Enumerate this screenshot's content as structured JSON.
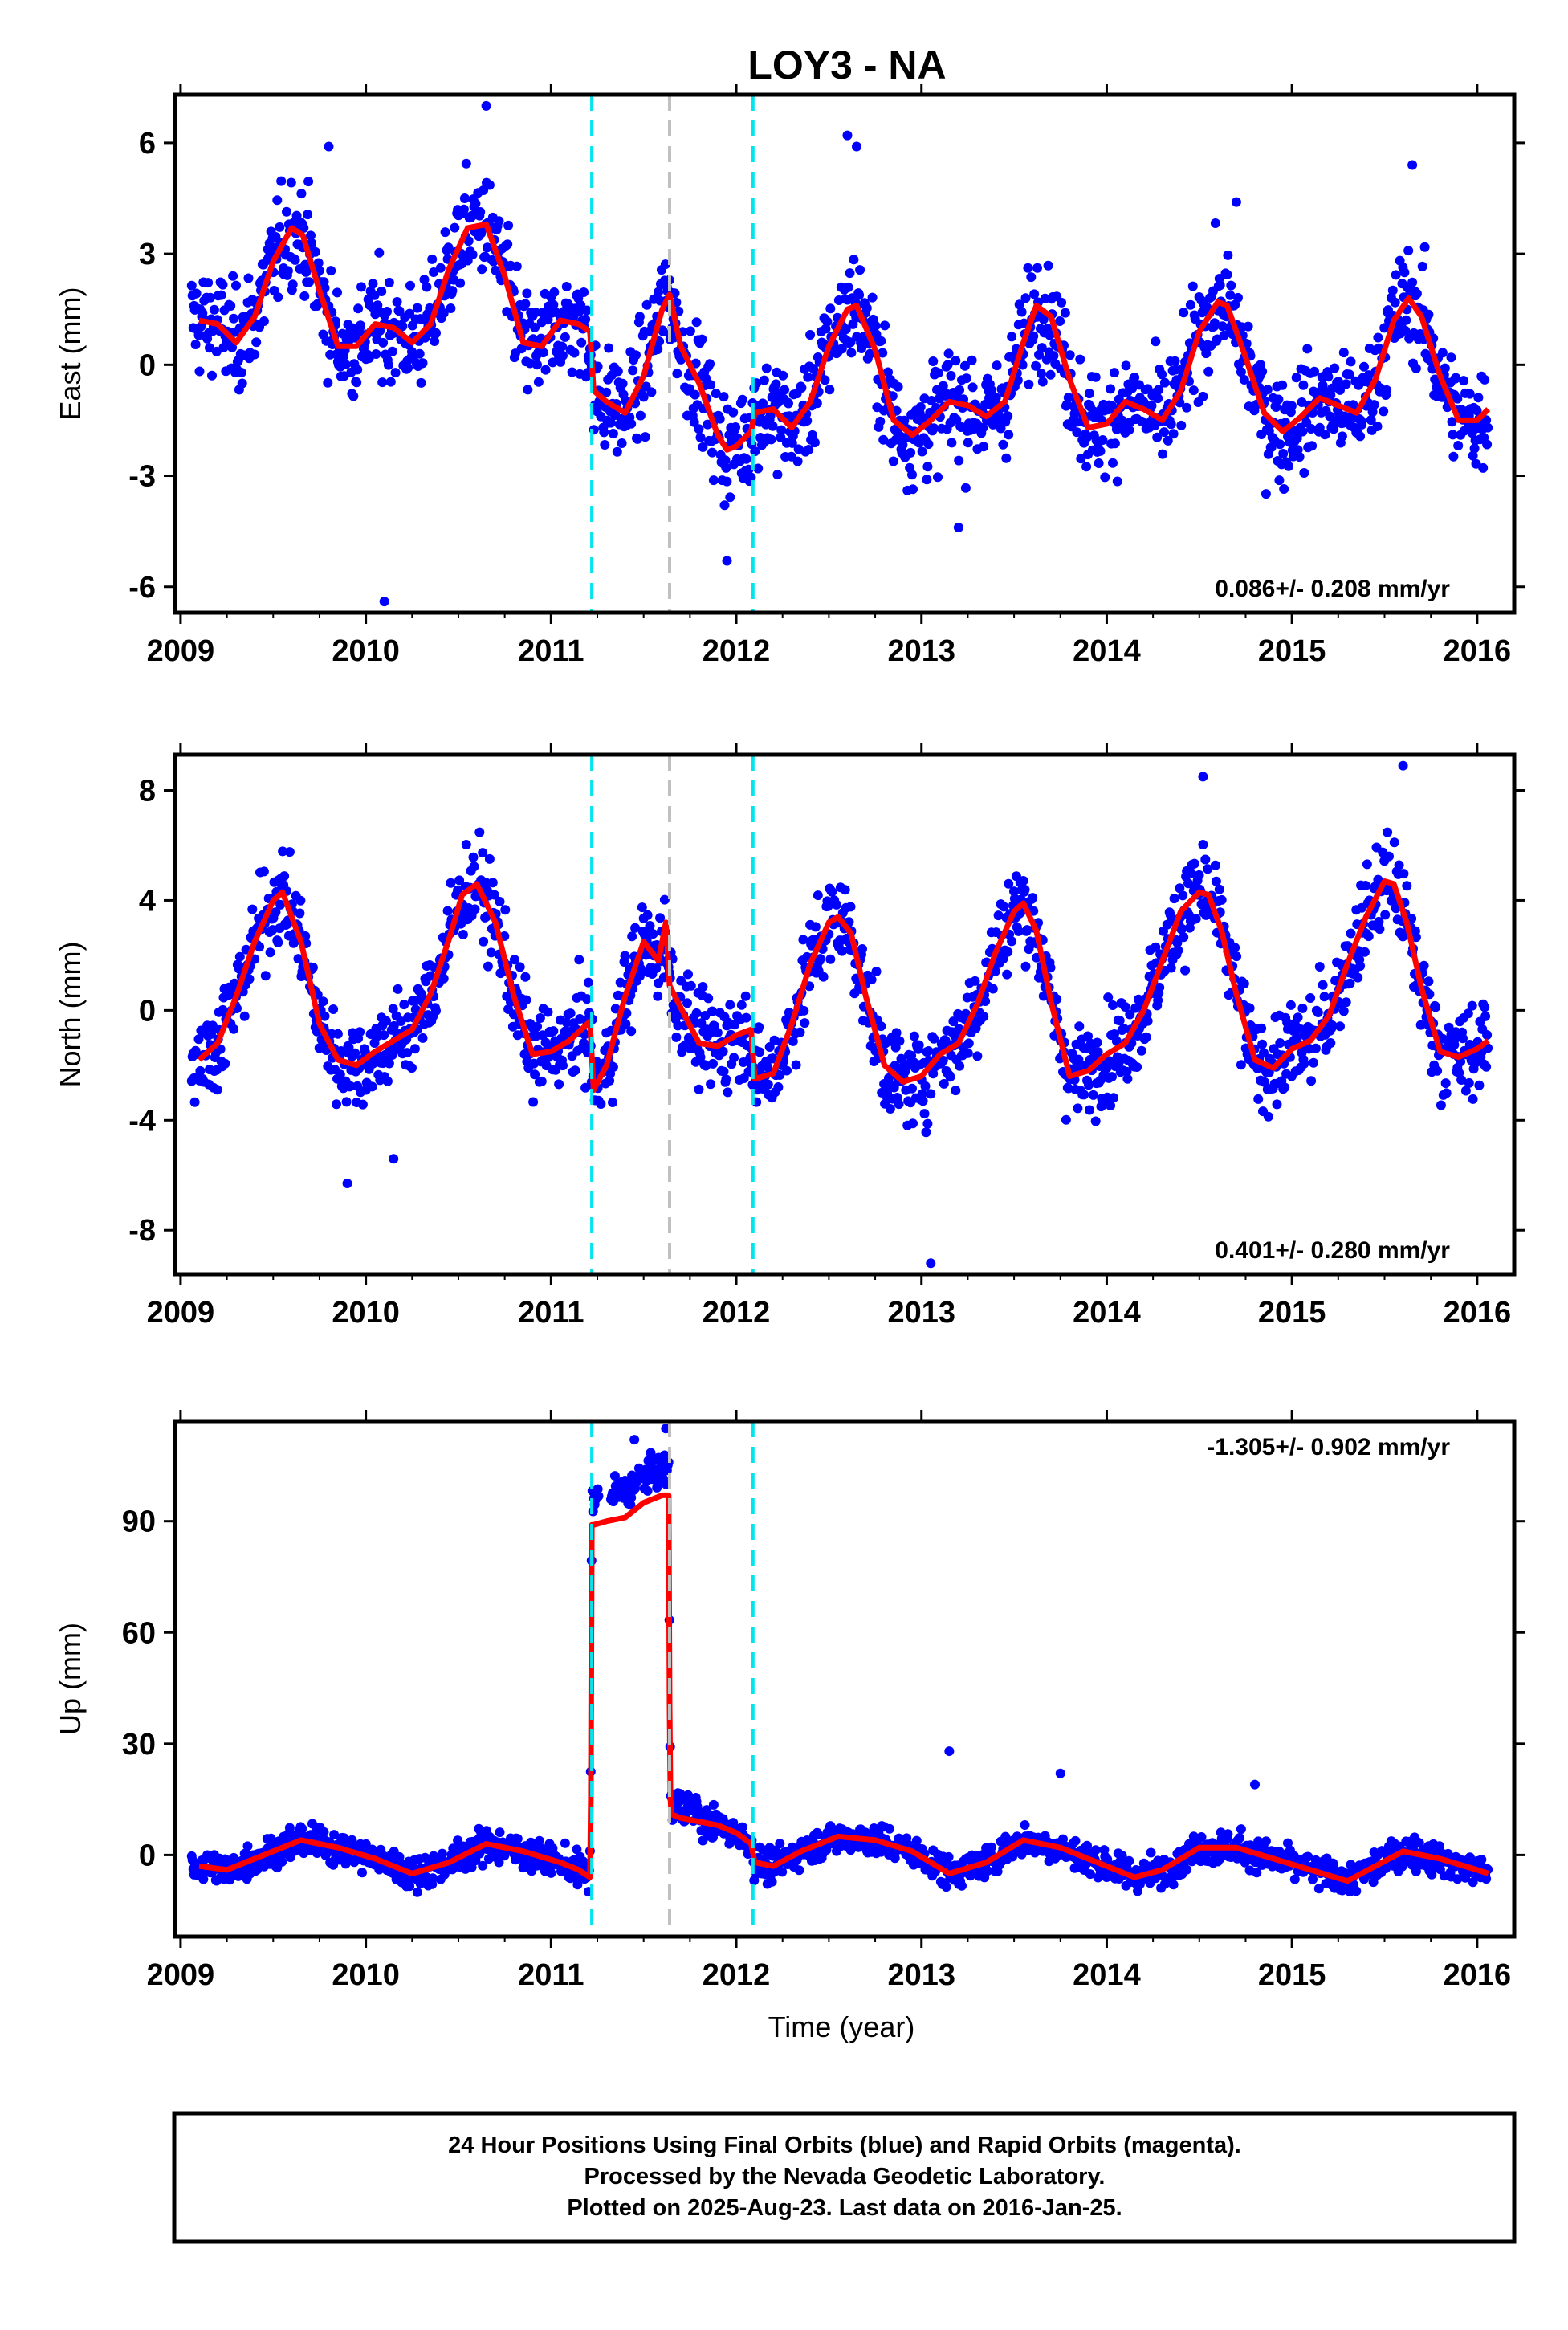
{
  "title": "LOY3 - NA",
  "xlabel": "Time (year)",
  "footer": {
    "line1": "24 Hour Positions Using Final Orbits (blue) and Rapid Orbits (magenta).",
    "line2": "Processed by the Nevada Geodetic Laboratory.",
    "line3": "Plotted on 2025-Aug-23. Last data on 2016-Jan-25."
  },
  "colors": {
    "points": "#0000ff",
    "model": "#ff0000",
    "offset_lines": "#00e5ee",
    "gap_line": "#c0c0c0"
  },
  "chart_data": [
    {
      "type": "scatter",
      "ylabel": "East (mm)",
      "rate": "0.086+/- 0.208 mm/yr",
      "rate_position": "bottom-right",
      "xlim": [
        2008.97,
        2016.2
      ],
      "ylim": [
        -6.7,
        7.3
      ],
      "xticks": [
        "2009",
        "2010",
        "2011",
        "2012",
        "2013",
        "2014",
        "2015",
        "2016"
      ],
      "yticks": [
        "-6",
        "-3",
        "0",
        "3",
        "6"
      ],
      "ytick_values": [
        -6,
        -3,
        0,
        3,
        6
      ],
      "offset_lines": [
        2011.22,
        2012.09
      ],
      "gap_line": 2011.64,
      "model": {
        "x": [
          2009.1,
          2009.2,
          2009.3,
          2009.4,
          2009.5,
          2009.6,
          2009.66,
          2009.75,
          2009.85,
          2009.95,
          2010.05,
          2010.15,
          2010.25,
          2010.35,
          2010.45,
          2010.55,
          2010.65,
          2010.75,
          2010.85,
          2010.95,
          2011.05,
          2011.15,
          2011.21,
          2011.23,
          2011.3,
          2011.4,
          2011.5,
          2011.6,
          2011.64,
          2011.7,
          2011.8,
          2011.9,
          2011.95,
          2012.0,
          2012.08,
          2012.1,
          2012.2,
          2012.3,
          2012.4,
          2012.5,
          2012.6,
          2012.65,
          2012.75,
          2012.85,
          2012.95,
          2013.05,
          2013.15,
          2013.25,
          2013.35,
          2013.45,
          2013.55,
          2013.62,
          2013.7,
          2013.8,
          2013.9,
          2014.0,
          2014.1,
          2014.2,
          2014.3,
          2014.4,
          2014.5,
          2014.6,
          2014.65,
          2014.75,
          2014.85,
          2014.95,
          2015.05,
          2015.15,
          2015.25,
          2015.35,
          2015.45,
          2015.55,
          2015.63,
          2015.7,
          2015.8,
          2015.9,
          2016.0,
          2016.06
        ],
        "y": [
          1.2,
          1.1,
          0.6,
          1.3,
          2.8,
          3.7,
          3.5,
          2.0,
          0.5,
          0.5,
          1.1,
          1.0,
          0.6,
          1.1,
          2.6,
          3.7,
          3.8,
          2.4,
          0.6,
          0.5,
          1.2,
          1.1,
          0.9,
          -0.7,
          -1.0,
          -1.3,
          -0.3,
          1.5,
          1.9,
          0.5,
          -0.5,
          -1.9,
          -2.3,
          -2.2,
          -1.8,
          -1.3,
          -1.2,
          -1.7,
          -1.0,
          0.5,
          1.5,
          1.6,
          0.4,
          -1.5,
          -1.9,
          -1.5,
          -1.0,
          -1.1,
          -1.4,
          -1.0,
          0.6,
          1.6,
          1.3,
          -0.4,
          -1.7,
          -1.6,
          -1.0,
          -1.2,
          -1.5,
          -0.7,
          0.9,
          1.7,
          1.6,
          0.2,
          -1.3,
          -1.8,
          -1.4,
          -0.9,
          -1.1,
          -1.3,
          -0.4,
          1.2,
          1.8,
          1.3,
          -0.3,
          -1.5,
          -1.5,
          -1.2
        ]
      },
      "outliers": [
        {
          "x": 2010.1,
          "y": -6.4
        },
        {
          "x": 2010.65,
          "y": 7.0
        },
        {
          "x": 2012.6,
          "y": 6.2
        },
        {
          "x": 2012.65,
          "y": 5.9
        },
        {
          "x": 2011.95,
          "y": -5.3
        },
        {
          "x": 2015.65,
          "y": 5.4
        },
        {
          "x": 2009.8,
          "y": 5.9
        },
        {
          "x": 2013.2,
          "y": -4.4
        },
        {
          "x": 2014.7,
          "y": 4.4
        }
      ]
    },
    {
      "type": "scatter",
      "ylabel": "North (mm)",
      "rate": "0.401+/- 0.280 mm/yr",
      "rate_position": "bottom-right",
      "xlim": [
        2008.97,
        2016.2
      ],
      "ylim": [
        -9.6,
        9.3
      ],
      "xticks": [
        "2009",
        "2010",
        "2011",
        "2012",
        "2013",
        "2014",
        "2015",
        "2016"
      ],
      "yticks": [
        "-8",
        "-4",
        "0",
        "4",
        "8"
      ],
      "ytick_values": [
        -8,
        -4,
        0,
        4,
        8
      ],
      "offset_lines": [
        2011.22,
        2012.09
      ],
      "gap_line": 2011.64,
      "model": {
        "x": [
          2009.1,
          2009.2,
          2009.3,
          2009.4,
          2009.5,
          2009.55,
          2009.65,
          2009.75,
          2009.85,
          2009.95,
          2010.05,
          2010.15,
          2010.25,
          2010.35,
          2010.45,
          2010.52,
          2010.6,
          2010.7,
          2010.8,
          2010.9,
          2011.0,
          2011.1,
          2011.21,
          2011.23,
          2011.3,
          2011.4,
          2011.5,
          2011.58,
          2011.62,
          2011.64,
          2011.7,
          2011.8,
          2011.9,
          2012.0,
          2012.08,
          2012.1,
          2012.2,
          2012.3,
          2012.4,
          2012.5,
          2012.55,
          2012.62,
          2012.7,
          2012.8,
          2012.9,
          2013.0,
          2013.1,
          2013.2,
          2013.3,
          2013.4,
          2013.5,
          2013.55,
          2013.62,
          2013.7,
          2013.8,
          2013.9,
          2014.0,
          2014.1,
          2014.2,
          2014.3,
          2014.4,
          2014.5,
          2014.55,
          2014.62,
          2014.7,
          2014.8,
          2014.9,
          2015.0,
          2015.1,
          2015.2,
          2015.3,
          2015.4,
          2015.5,
          2015.55,
          2015.62,
          2015.7,
          2015.8,
          2015.9,
          2016.0,
          2016.06
        ],
        "y": [
          -1.8,
          -1.2,
          0.5,
          2.5,
          4.0,
          4.3,
          2.5,
          -0.5,
          -1.8,
          -2.0,
          -1.5,
          -1.1,
          -0.7,
          0.6,
          2.6,
          4.2,
          4.6,
          3.2,
          0.5,
          -1.6,
          -1.5,
          -1.1,
          -0.4,
          -2.9,
          -2.0,
          0.5,
          2.5,
          1.8,
          3.2,
          0.9,
          0.1,
          -1.2,
          -1.3,
          -0.9,
          -0.7,
          -2.5,
          -2.3,
          -0.5,
          1.7,
          3.2,
          3.4,
          2.8,
          0.5,
          -2.0,
          -2.6,
          -2.4,
          -1.6,
          -1.2,
          0.2,
          2.1,
          3.6,
          3.9,
          2.9,
          0.3,
          -2.4,
          -2.2,
          -1.6,
          -1.2,
          0.0,
          1.8,
          3.6,
          4.3,
          4.2,
          2.9,
          0.6,
          -1.8,
          -2.1,
          -1.4,
          -1.1,
          -0.2,
          1.7,
          3.4,
          4.7,
          4.6,
          3.2,
          0.8,
          -1.5,
          -1.7,
          -1.4,
          -1.1
        ]
      },
      "outliers": [
        {
          "x": 2009.9,
          "y": -6.3
        },
        {
          "x": 2013.05,
          "y": -9.2
        },
        {
          "x": 2015.6,
          "y": 8.9
        },
        {
          "x": 2014.52,
          "y": 8.5
        },
        {
          "x": 2010.15,
          "y": -5.4
        }
      ]
    },
    {
      "type": "scatter",
      "ylabel": "Up (mm)",
      "rate": "-1.305+/- 0.902 mm/yr",
      "rate_position": "top-right",
      "xlim": [
        2008.97,
        2016.2
      ],
      "ylim": [
        -22,
        117
      ],
      "xticks": [
        "2009",
        "2010",
        "2011",
        "2012",
        "2013",
        "2014",
        "2015",
        "2016"
      ],
      "yticks": [
        "0",
        "30",
        "60",
        "90"
      ],
      "ytick_values": [
        0,
        30,
        60,
        90
      ],
      "offset_lines": [
        2011.22,
        2012.09
      ],
      "gap_line": 2011.64,
      "model": {
        "x": [
          2009.1,
          2009.25,
          2009.45,
          2009.65,
          2009.85,
          2010.05,
          2010.25,
          2010.45,
          2010.65,
          2010.85,
          2011.05,
          2011.15,
          2011.21,
          2011.215,
          2011.22,
          2011.23,
          2011.3,
          2011.4,
          2011.5,
          2011.6,
          2011.635,
          2011.64,
          2011.645,
          2011.65,
          2011.7,
          2011.8,
          2011.9,
          2012.0,
          2012.08,
          2012.1,
          2012.2,
          2012.35,
          2012.55,
          2012.75,
          2012.95,
          2013.15,
          2013.35,
          2013.55,
          2013.75,
          2013.95,
          2014.15,
          2014.3,
          2014.5,
          2014.7,
          2014.9,
          2015.1,
          2015.3,
          2015.45,
          2015.6,
          2015.8,
          2016.0,
          2016.06
        ],
        "y": [
          -3,
          -4,
          0,
          4,
          2,
          -1,
          -5,
          -2,
          3,
          1,
          -2,
          -4,
          -6,
          15,
          89,
          89,
          90,
          91,
          95,
          97,
          97,
          40,
          15,
          11,
          10,
          9,
          8,
          6,
          3,
          -2,
          -3,
          1,
          5,
          4,
          1,
          -5,
          -2,
          4,
          2,
          -2,
          -6,
          -4,
          2,
          2,
          -1,
          -4,
          -7,
          -3,
          1,
          -1,
          -4,
          -5
        ]
      },
      "outliers": [
        {
          "x": 2013.15,
          "y": 28
        },
        {
          "x": 2013.75,
          "y": 22
        },
        {
          "x": 2014.8,
          "y": 19
        },
        {
          "x": 2011.62,
          "y": 115
        },
        {
          "x": 2011.45,
          "y": 112
        }
      ]
    }
  ]
}
